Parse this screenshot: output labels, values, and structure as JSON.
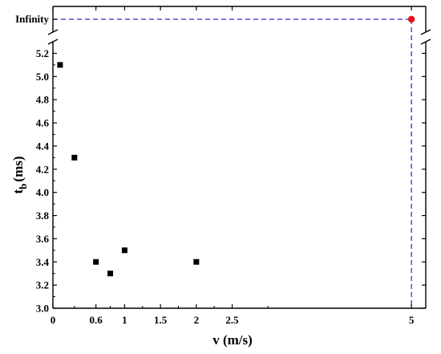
{
  "chart_data": {
    "type": "scatter",
    "title": "",
    "xlabel": "v (m/s)",
    "ylabel_main": "t",
    "ylabel_sub": "b",
    "ylabel_rest": "(ms)",
    "xlim": [
      0,
      5.2
    ],
    "ylim": [
      3.0,
      5.3
    ],
    "x_ticks": [
      {
        "value": 0,
        "label": "0"
      },
      {
        "value": 0.6,
        "label": "0.6"
      },
      {
        "value": 1,
        "label": "1"
      },
      {
        "value": 1.5,
        "label": "1.5"
      },
      {
        "value": 2,
        "label": "2"
      },
      {
        "value": 2.5,
        "label": "2.5"
      },
      {
        "value": 5,
        "label": "5"
      }
    ],
    "x_minor_ticks": [
      0.3,
      0.8,
      1.25,
      1.75,
      2.25,
      3.0
    ],
    "y_ticks": [
      {
        "value": 3.0,
        "label": "3.0"
      },
      {
        "value": 3.2,
        "label": "3.2"
      },
      {
        "value": 3.4,
        "label": "3.4"
      },
      {
        "value": 3.6,
        "label": "3.6"
      },
      {
        "value": 3.8,
        "label": "3.8"
      },
      {
        "value": 4.0,
        "label": "4.0"
      },
      {
        "value": 4.2,
        "label": "4.2"
      },
      {
        "value": 4.4,
        "label": "4.4"
      },
      {
        "value": 4.6,
        "label": "4.6"
      },
      {
        "value": 4.8,
        "label": "4.8"
      },
      {
        "value": 5.0,
        "label": "5.0"
      },
      {
        "value": 5.2,
        "label": "5.2"
      }
    ],
    "y_break_label": "Infinity",
    "series": [
      {
        "marker": "square",
        "color": "#000000",
        "points": [
          {
            "x": 0.1,
            "y": 5.1
          },
          {
            "x": 0.3,
            "y": 4.3
          },
          {
            "x": 0.6,
            "y": 3.4
          },
          {
            "x": 0.8,
            "y": 3.3
          },
          {
            "x": 1.0,
            "y": 3.5
          },
          {
            "x": 2.0,
            "y": 3.4
          }
        ]
      }
    ],
    "infinity_point": {
      "x": 5,
      "y": "Infinity",
      "color": "#e8141a"
    },
    "guide_line_color": "#2b2bd6",
    "grid": false,
    "axis_break": true
  }
}
